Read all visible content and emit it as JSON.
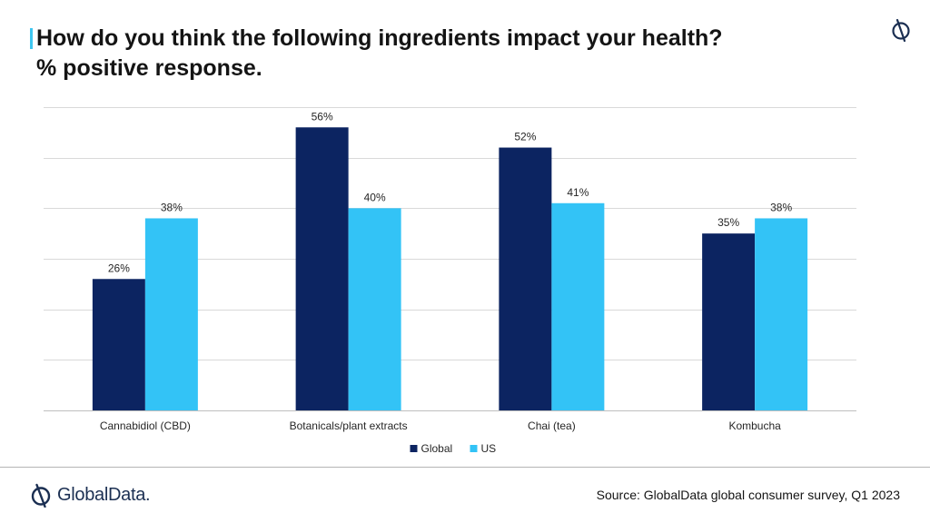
{
  "header": {
    "title": "How do you think the following ingredients impact your health?",
    "subtitle": "% positive response.",
    "accent_color": "#3ec6f0",
    "logo_icon": "globaldata-mark-icon"
  },
  "chart_data": {
    "type": "bar",
    "title": "How do you think the following ingredients impact your health?",
    "subtitle": "% positive response.",
    "categories": [
      "Cannabidiol (CBD)",
      "Botanicals/plant extracts",
      "Chai (tea)",
      "Kombucha"
    ],
    "series": [
      {
        "name": "Global",
        "values": [
          26,
          56,
          52,
          35
        ],
        "labels": [
          "26%",
          "56%",
          "52%",
          "35%"
        ],
        "color": "#0c2461"
      },
      {
        "name": "US",
        "values": [
          38,
          40,
          41,
          38
        ],
        "labels": [
          "38%",
          "40%",
          "41%",
          "38%"
        ],
        "color": "#33c3f6"
      }
    ],
    "ylim": [
      0,
      60
    ],
    "y_gridlines": [
      0,
      10,
      20,
      30,
      40,
      50,
      60
    ],
    "y_tick_labels_shown": false,
    "grid": true,
    "legend_position": "bottom-center",
    "xlabel": "",
    "ylabel": ""
  },
  "footer": {
    "brand_name": "GlobalData.",
    "brand_icon": "globaldata-logo-icon",
    "source": "Source: GlobalData global consumer survey, Q1 2023"
  }
}
